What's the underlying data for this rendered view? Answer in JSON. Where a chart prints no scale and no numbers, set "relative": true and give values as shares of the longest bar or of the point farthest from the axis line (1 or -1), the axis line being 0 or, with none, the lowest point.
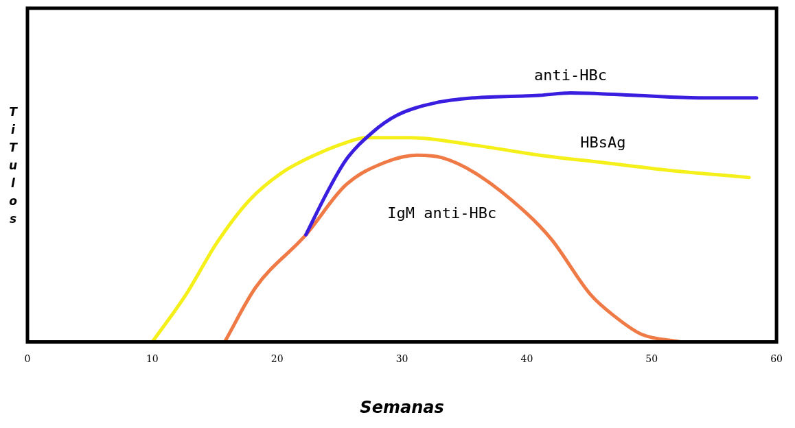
{
  "chart_data": {
    "type": "line",
    "xlabel": "Semanas",
    "ylabel": "TiTulos",
    "relative": true,
    "xlim": [
      0,
      60
    ],
    "xticks": [
      0,
      10,
      20,
      30,
      40,
      50,
      60
    ],
    "grid": false,
    "legend": false,
    "marker": "none",
    "line_style": "solid",
    "series": [
      {
        "name": "anti-HBc",
        "color": "#3a1ee0",
        "x": [
          22.3,
          24.0,
          25.5,
          27.6,
          29.6,
          32.7,
          35.8,
          41.0,
          43.5,
          48.7,
          53.8,
          58.4
        ],
        "values": [
          0.43,
          0.6,
          0.73,
          0.84,
          0.91,
          0.96,
          0.98,
          0.99,
          1.0,
          0.99,
          0.98,
          0.98
        ]
      },
      {
        "name": "HBsAg",
        "color": "#f5f01a",
        "x": [
          10,
          12.7,
          15.2,
          17.8,
          20.4,
          23.0,
          25.5,
          27.1,
          30.7,
          35.8,
          41.0,
          46.1,
          51.2,
          57.8
        ],
        "values": [
          0,
          0.19,
          0.4,
          0.57,
          0.68,
          0.75,
          0.8,
          0.82,
          0.82,
          0.79,
          0.75,
          0.72,
          0.69,
          0.66
        ]
      },
      {
        "name": "IgM anti-HBc",
        "color": "#f07a45",
        "x": [
          15.8,
          18.3,
          22.3,
          25.5,
          28.6,
          31.2,
          33.2,
          35.8,
          39.9,
          42.0,
          45.1,
          47.1,
          49.2,
          52.3
        ],
        "values": [
          0,
          0.22,
          0.43,
          0.63,
          0.72,
          0.75,
          0.74,
          0.68,
          0.52,
          0.41,
          0.19,
          0.1,
          0.03,
          0
        ]
      }
    ]
  }
}
